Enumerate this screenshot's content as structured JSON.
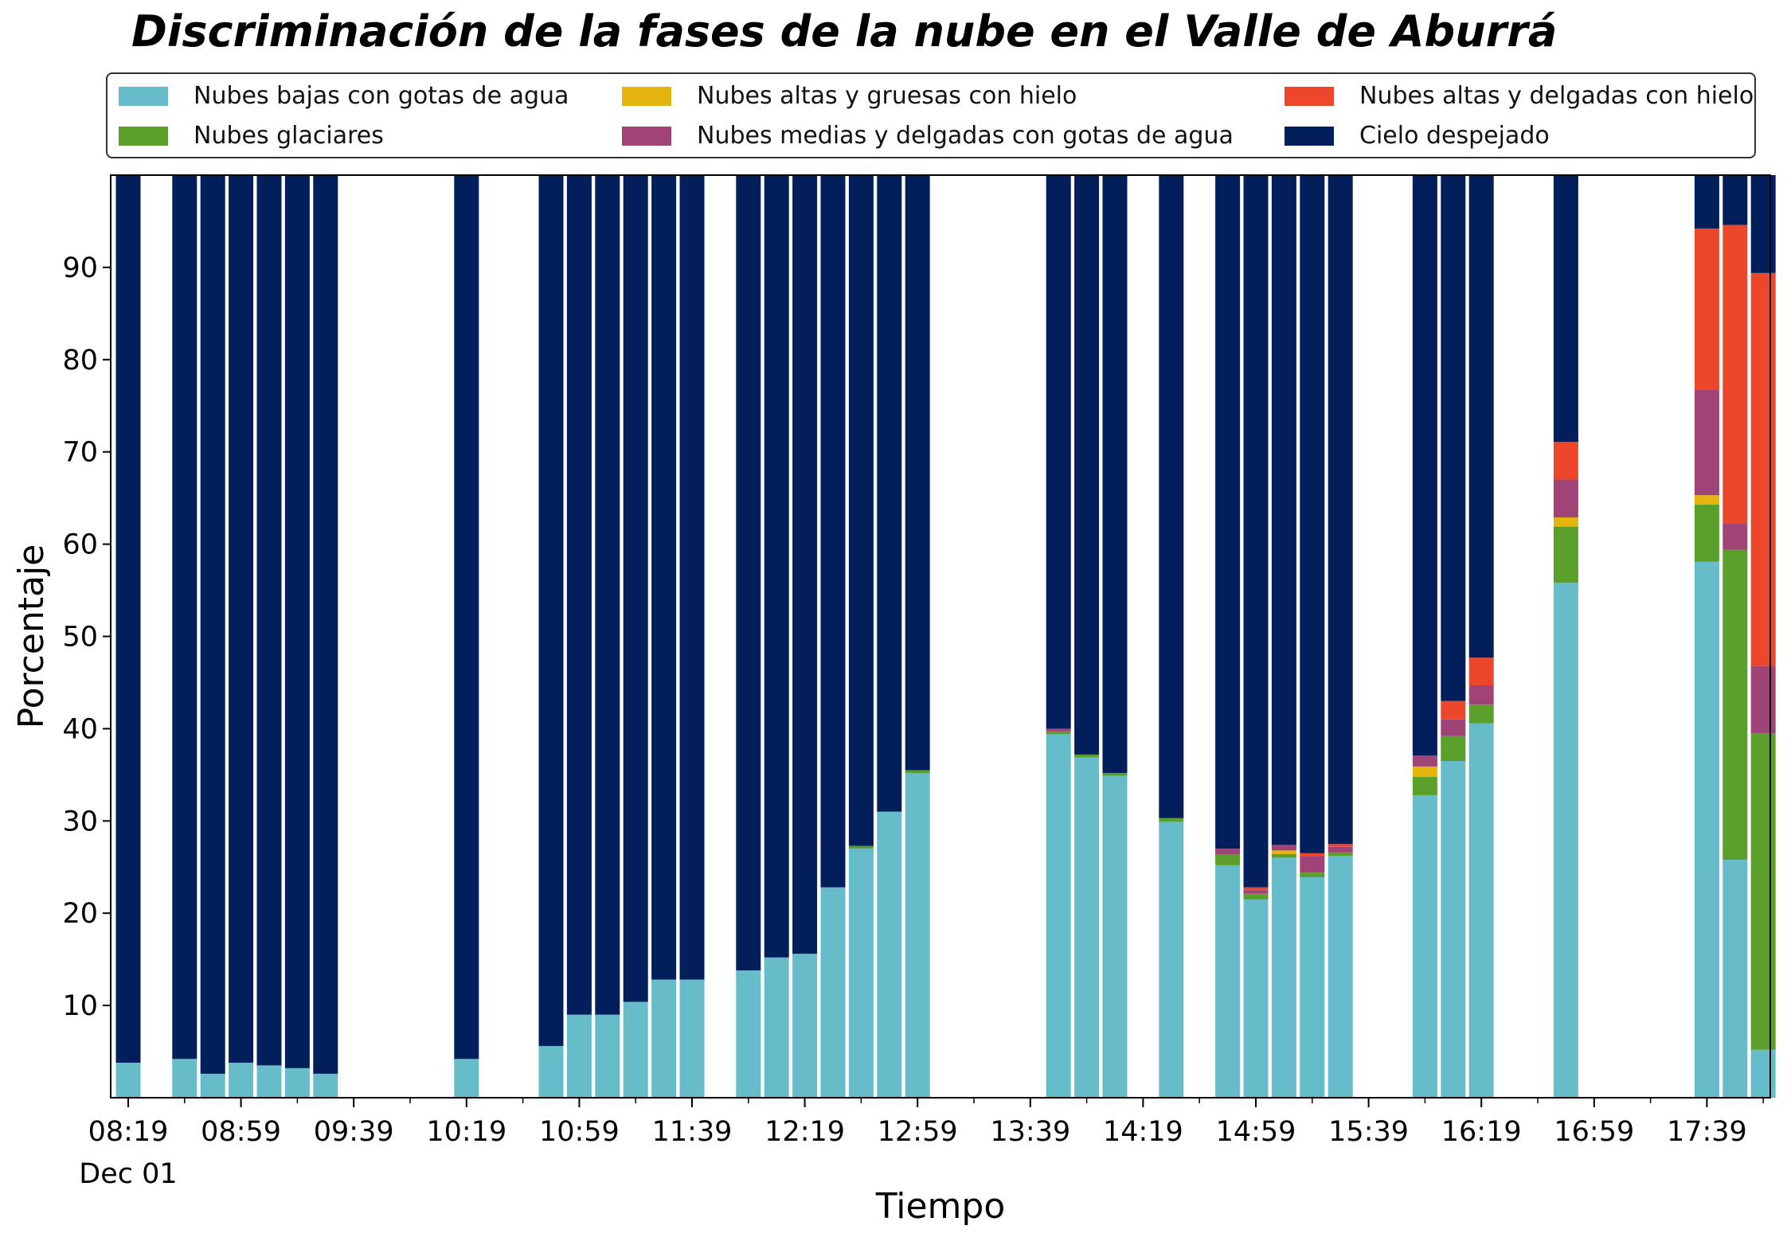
{
  "chart_data": {
    "type": "bar",
    "stacked": true,
    "title": "Discriminación de la fases de la nube en el Valle de Aburrá",
    "xlabel": "Tiempo",
    "ylabel": "Porcentaje",
    "ylim": [
      0,
      100
    ],
    "yticks": [
      10,
      20,
      30,
      40,
      50,
      60,
      70,
      80,
      90
    ],
    "xtick_labels": [
      "08:19",
      "08:59",
      "09:39",
      "10:19",
      "10:59",
      "11:39",
      "12:19",
      "12:59",
      "13:39",
      "14:19",
      "14:59",
      "15:39",
      "16:19",
      "16:59",
      "17:39"
    ],
    "xtick_sublabel": "Dec 01",
    "legend_placement": "top",
    "grid": false,
    "colors": {
      "low_water": "#66bdc9",
      "glacier": "#5a9f2a",
      "thick_ice": "#e5b50f",
      "mid_water": "#a04377",
      "thin_ice": "#ec472a",
      "clear": "#021f5c"
    },
    "series": [
      {
        "name": "Nubes bajas con gotas de agua",
        "key": "low_water"
      },
      {
        "name": "Nubes glaciares",
        "key": "glacier"
      },
      {
        "name": "Nubes altas y gruesas con hielo",
        "key": "thick_ice"
      },
      {
        "name": "Nubes medias y delgadas con gotas de agua",
        "key": "mid_water"
      },
      {
        "name": "Nubes altas y delgadas con hielo",
        "key": "thin_ice"
      },
      {
        "name": "Cielo despejado",
        "key": "clear"
      }
    ],
    "bars": [
      {
        "time": "08:19",
        "low_water": 3.8,
        "glacier": 0,
        "thick_ice": 0,
        "mid_water": 0,
        "thin_ice": 0,
        "clear": 96.2
      },
      {
        "time": "08:39",
        "low_water": 4.2,
        "glacier": 0,
        "thick_ice": 0,
        "mid_water": 0,
        "thin_ice": 0,
        "clear": 95.8
      },
      {
        "time": "08:49",
        "low_water": 2.6,
        "glacier": 0,
        "thick_ice": 0,
        "mid_water": 0,
        "thin_ice": 0,
        "clear": 97.4
      },
      {
        "time": "08:59",
        "low_water": 3.8,
        "glacier": 0,
        "thick_ice": 0,
        "mid_water": 0,
        "thin_ice": 0,
        "clear": 96.2
      },
      {
        "time": "09:09",
        "low_water": 3.5,
        "glacier": 0,
        "thick_ice": 0,
        "mid_water": 0,
        "thin_ice": 0,
        "clear": 96.5
      },
      {
        "time": "09:19",
        "low_water": 3.2,
        "glacier": 0,
        "thick_ice": 0,
        "mid_water": 0,
        "thin_ice": 0,
        "clear": 96.8
      },
      {
        "time": "09:29",
        "low_water": 2.6,
        "glacier": 0,
        "thick_ice": 0,
        "mid_water": 0,
        "thin_ice": 0,
        "clear": 97.4
      },
      {
        "time": "10:19",
        "low_water": 4.2,
        "glacier": 0,
        "thick_ice": 0,
        "mid_water": 0,
        "thin_ice": 0,
        "clear": 95.8
      },
      {
        "time": "10:49",
        "low_water": 5.6,
        "glacier": 0,
        "thick_ice": 0,
        "mid_water": 0,
        "thin_ice": 0,
        "clear": 94.4
      },
      {
        "time": "10:59",
        "low_water": 9.0,
        "glacier": 0,
        "thick_ice": 0,
        "mid_water": 0,
        "thin_ice": 0,
        "clear": 91.0
      },
      {
        "time": "11:09",
        "low_water": 9.0,
        "glacier": 0,
        "thick_ice": 0,
        "mid_water": 0,
        "thin_ice": 0,
        "clear": 91.0
      },
      {
        "time": "11:19",
        "low_water": 10.4,
        "glacier": 0,
        "thick_ice": 0,
        "mid_water": 0,
        "thin_ice": 0,
        "clear": 89.6
      },
      {
        "time": "11:29",
        "low_water": 12.8,
        "glacier": 0,
        "thick_ice": 0,
        "mid_water": 0,
        "thin_ice": 0,
        "clear": 87.2
      },
      {
        "time": "11:39",
        "low_water": 12.8,
        "glacier": 0,
        "thick_ice": 0,
        "mid_water": 0,
        "thin_ice": 0,
        "clear": 87.2
      },
      {
        "time": "11:59",
        "low_water": 13.8,
        "glacier": 0,
        "thick_ice": 0,
        "mid_water": 0,
        "thin_ice": 0,
        "clear": 86.2
      },
      {
        "time": "12:09",
        "low_water": 15.2,
        "glacier": 0,
        "thick_ice": 0,
        "mid_water": 0,
        "thin_ice": 0,
        "clear": 84.8
      },
      {
        "time": "12:19",
        "low_water": 15.6,
        "glacier": 0,
        "thick_ice": 0,
        "mid_water": 0,
        "thin_ice": 0,
        "clear": 84.4
      },
      {
        "time": "12:29",
        "low_water": 22.8,
        "glacier": 0,
        "thick_ice": 0,
        "mid_water": 0,
        "thin_ice": 0,
        "clear": 77.2
      },
      {
        "time": "12:39",
        "low_water": 27.0,
        "glacier": 0.3,
        "thick_ice": 0,
        "mid_water": 0,
        "thin_ice": 0,
        "clear": 72.7
      },
      {
        "time": "12:49",
        "low_water": 31.0,
        "glacier": 0,
        "thick_ice": 0,
        "mid_water": 0,
        "thin_ice": 0,
        "clear": 69.0
      },
      {
        "time": "12:59",
        "low_water": 35.2,
        "glacier": 0.3,
        "thick_ice": 0,
        "mid_water": 0,
        "thin_ice": 0,
        "clear": 64.5
      },
      {
        "time": "13:49",
        "low_water": 39.4,
        "glacier": 0.3,
        "thick_ice": 0,
        "mid_water": 0.3,
        "thin_ice": 0,
        "clear": 60.0
      },
      {
        "time": "13:59",
        "low_water": 36.9,
        "glacier": 0.3,
        "thick_ice": 0,
        "mid_water": 0,
        "thin_ice": 0,
        "clear": 62.8
      },
      {
        "time": "14:09",
        "low_water": 34.9,
        "glacier": 0.3,
        "thick_ice": 0,
        "mid_water": 0,
        "thin_ice": 0,
        "clear": 64.8
      },
      {
        "time": "14:29",
        "low_water": 29.9,
        "glacier": 0.4,
        "thick_ice": 0,
        "mid_water": 0,
        "thin_ice": 0,
        "clear": 69.7
      },
      {
        "time": "14:49",
        "low_water": 25.2,
        "glacier": 1.2,
        "thick_ice": 0,
        "mid_water": 0.6,
        "thin_ice": 0,
        "clear": 73.0
      },
      {
        "time": "14:59",
        "low_water": 21.5,
        "glacier": 0.6,
        "thick_ice": 0,
        "mid_water": 0.4,
        "thin_ice": 0.3,
        "clear": 77.2
      },
      {
        "time": "15:09",
        "low_water": 26.0,
        "glacier": 0.4,
        "thick_ice": 0.4,
        "mid_water": 0.6,
        "thin_ice": 0,
        "clear": 72.6
      },
      {
        "time": "15:19",
        "low_water": 23.9,
        "glacier": 0.5,
        "thick_ice": 0,
        "mid_water": 1.8,
        "thin_ice": 0.3,
        "clear": 73.5
      },
      {
        "time": "15:29",
        "low_water": 26.2,
        "glacier": 0.4,
        "thick_ice": 0,
        "mid_water": 0.6,
        "thin_ice": 0.3,
        "clear": 72.5
      },
      {
        "time": "15:59",
        "low_water": 32.8,
        "glacier": 2.0,
        "thick_ice": 1.1,
        "mid_water": 1.2,
        "thin_ice": 0,
        "clear": 62.9
      },
      {
        "time": "16:09",
        "low_water": 36.5,
        "glacier": 2.7,
        "thick_ice": 0,
        "mid_water": 1.8,
        "thin_ice": 2.0,
        "clear": 57.0
      },
      {
        "time": "16:19",
        "low_water": 40.6,
        "glacier": 2.0,
        "thick_ice": 0,
        "mid_water": 2.1,
        "thin_ice": 3.0,
        "clear": 52.3
      },
      {
        "time": "16:49",
        "low_water": 55.8,
        "glacier": 6.1,
        "thick_ice": 1.0,
        "mid_water": 4.1,
        "thin_ice": 4.1,
        "clear": 28.9
      },
      {
        "time": "17:39",
        "low_water": 58.1,
        "glacier": 6.2,
        "thick_ice": 1.0,
        "mid_water": 11.4,
        "thin_ice": 17.5,
        "clear": 5.8
      },
      {
        "time": "17:49",
        "low_water": 25.8,
        "glacier": 33.6,
        "thick_ice": 0,
        "mid_water": 2.8,
        "thin_ice": 32.4,
        "clear": 5.4
      },
      {
        "time": "17:59",
        "low_water": 5.2,
        "glacier": 34.3,
        "thick_ice": 0,
        "mid_water": 7.3,
        "thin_ice": 42.6,
        "clear": 10.6
      }
    ]
  }
}
